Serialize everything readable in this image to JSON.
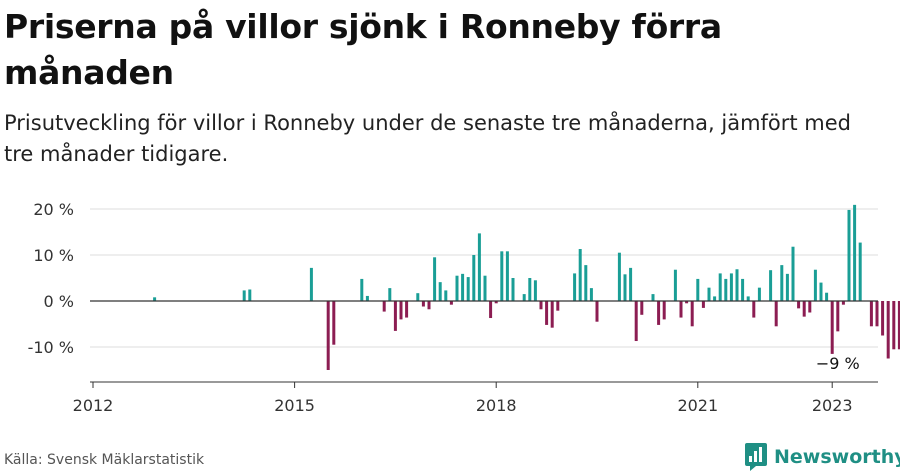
{
  "header": {
    "title": "Priserna på villor sjönk i Ronneby förra månaden",
    "subtitle": "Prisutveckling för villor i Ronneby under de senaste tre månaderna, jämfört med tre månader tidigare."
  },
  "footer": {
    "source": "Källa: Svensk Mäklarstatistik",
    "brand": "Newsworthy"
  },
  "colors": {
    "positive": "#1a9e96",
    "negative": "#8c1d52",
    "brand": "#1f8f84",
    "grid": "#dddddd",
    "axis": "#333333"
  },
  "chart_data": {
    "type": "bar",
    "x_unit": "month",
    "x_start": "2012-01",
    "ylim": [
      -17,
      23
    ],
    "yticks": [
      {
        "value": 20,
        "label": "20 %"
      },
      {
        "value": 10,
        "label": "10 %"
      },
      {
        "value": 0,
        "label": "0 %"
      },
      {
        "value": -10,
        "label": "-10 %"
      }
    ],
    "xticks": [
      {
        "month_index": 0,
        "label": "2012"
      },
      {
        "month_index": 36,
        "label": "2015"
      },
      {
        "month_index": 72,
        "label": "2018"
      },
      {
        "month_index": 108,
        "label": "2021"
      },
      {
        "month_index": 132,
        "label": "2023"
      }
    ],
    "grid": true,
    "values": [
      0,
      0,
      0,
      0,
      0,
      0,
      0,
      0,
      0,
      0,
      0,
      0.8,
      0,
      0,
      0,
      0,
      0,
      0,
      0,
      0,
      0,
      0,
      0,
      0,
      0,
      0,
      0,
      2.3,
      2.5,
      0,
      0,
      0,
      0,
      0,
      0,
      0,
      0,
      0,
      0,
      7.2,
      0,
      0,
      -15,
      -9.5,
      0,
      0,
      0,
      0,
      4.8,
      1.1,
      0,
      0,
      -2.3,
      2.8,
      -6.5,
      -4,
      -3.6,
      0,
      1.7,
      -1.2,
      -1.8,
      9.5,
      4.1,
      2.3,
      -0.8,
      5.5,
      5.9,
      5.2,
      10,
      14.7,
      5.5,
      -3.7,
      -0.5,
      10.8,
      10.8,
      5,
      0,
      1.5,
      5,
      4.5,
      -1.8,
      -5.2,
      -5.8,
      -2.1,
      0,
      0,
      6,
      11.3,
      7.8,
      2.8,
      -4.5,
      0,
      0,
      0,
      10.5,
      5.8,
      7.2,
      -8.7,
      -3,
      0,
      1.5,
      -5.2,
      -4,
      0,
      6.8,
      -3.6,
      -0.5,
      -5.5,
      4.8,
      -1.5,
      2.9,
      1,
      6,
      4.8,
      6,
      6.9,
      4.8,
      1,
      -3.6,
      2.9,
      0,
      6.7,
      -5.5,
      7.8,
      5.9,
      11.8,
      -1.6,
      -3.4,
      -2.5,
      6.8,
      4,
      1.8,
      -11.5,
      -6.6,
      -0.8,
      19.8,
      20.9,
      12.7,
      0,
      -5.5,
      -5.5,
      -7.5,
      -12.5,
      -10.5,
      -10.5,
      -8.5
    ],
    "annotation": {
      "text": "−9 %",
      "month_index": 133
    }
  }
}
